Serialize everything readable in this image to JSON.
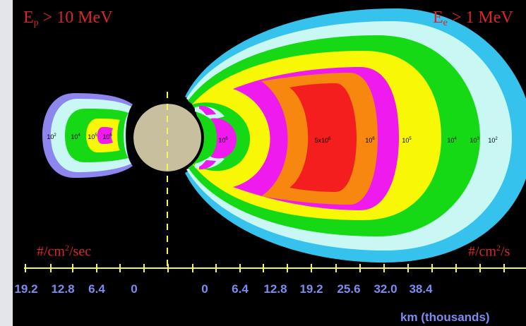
{
  "left_title": {
    "base": "E",
    "sub": "p",
    "rest": " > 10 MeV"
  },
  "right_title": {
    "base": "E",
    "sub": "e",
    "rest": " > 1 MeV"
  },
  "left_units": {
    "pre": "#/cm",
    "sup": "2",
    "post": "/sec"
  },
  "right_units": {
    "pre": "#/cm",
    "sup": "2",
    "post": "/s"
  },
  "axis": {
    "title": "km (thousands)",
    "left_ticks": [
      "19.2",
      "12.8",
      "6.4",
      "0"
    ],
    "right_ticks": [
      "0",
      "6.4",
      "12.8",
      "19.2",
      "25.6",
      "32.0",
      "38.4"
    ]
  },
  "proton_belt_labels": [
    {
      "base": "10",
      "exp": "2"
    },
    {
      "base": "10",
      "exp": "4"
    },
    {
      "base": "10",
      "exp": "5"
    },
    {
      "base": "10",
      "exp": "6"
    }
  ],
  "electron_belt_labels": [
    {
      "base": "10",
      "exp": "6"
    },
    {
      "base": "5x10",
      "exp": "6"
    },
    {
      "base": "10",
      "exp": "6"
    },
    {
      "base": "10",
      "exp": "5"
    },
    {
      "base": "10",
      "exp": "4"
    },
    {
      "base": "10",
      "exp": "3"
    },
    {
      "base": "10",
      "exp": "2"
    }
  ],
  "colors": {
    "background": "#000000",
    "earth": "#c8bf9f",
    "cyan": "#35c3ee",
    "light_cyan": "#c8f7f4",
    "green": "#16d916",
    "yellow": "#f7f706",
    "magenta": "#ee1aee",
    "orange": "#f7870e",
    "red": "#f41e1e",
    "periwinkle": "#8d86ee",
    "title": "#d8262a",
    "axis": "#f7f55f",
    "axis_text": "#7c8cf0"
  }
}
